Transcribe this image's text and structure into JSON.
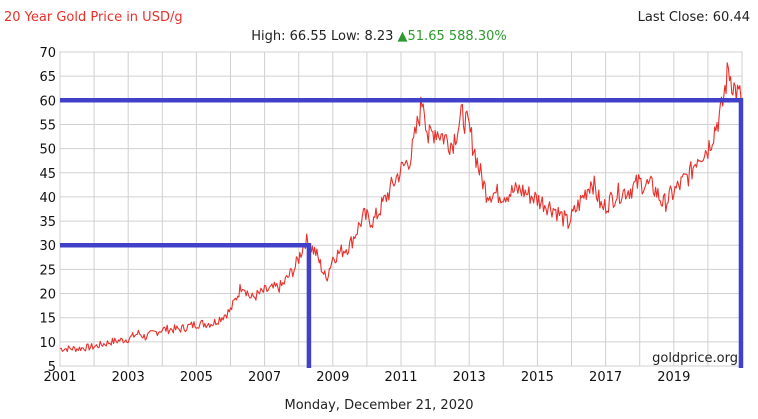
{
  "header": {
    "title": "20 Year Gold Price in USD/g",
    "last_close_label": "Last Close:",
    "last_close_value": "60.44",
    "high_label": "High:",
    "high_value": "66.55",
    "low_label": "Low:",
    "low_value": "8.23",
    "change_arrow": "▲",
    "change_value": "51.65",
    "change_percent": "588.30%"
  },
  "watermark": "goldprice.org",
  "date_text": "Monday, December 21, 2020",
  "colors": {
    "series": "#e8302a",
    "overlay": "#4040c8",
    "grid": "#d0d0d0",
    "up": "#2e9a2e"
  },
  "chart_data": {
    "type": "line",
    "title": "20 Year Gold Price in USD/g",
    "xlabel": "",
    "ylabel": "",
    "xlim": [
      2001.0,
      2021.0
    ],
    "ylim": [
      5,
      70
    ],
    "grid": true,
    "x_ticks": [
      "2001",
      "2003",
      "2005",
      "2007",
      "2009",
      "2011",
      "2013",
      "2015",
      "2017",
      "2019"
    ],
    "y_ticks": [
      5,
      10,
      15,
      20,
      25,
      30,
      35,
      40,
      45,
      50,
      55,
      60,
      65,
      70
    ],
    "series": [
      {
        "values": [
          [
            2001.0,
            8.6
          ],
          [
            2001.5,
            8.6
          ],
          [
            2002.0,
            9.0
          ],
          [
            2002.5,
            10.0
          ],
          [
            2003.0,
            10.6
          ],
          [
            2003.3,
            11.8
          ],
          [
            2003.5,
            11.0
          ],
          [
            2004.0,
            12.6
          ],
          [
            2004.5,
            12.6
          ],
          [
            2005.0,
            13.7
          ],
          [
            2005.5,
            13.9
          ],
          [
            2006.0,
            16.5
          ],
          [
            2006.35,
            22.0
          ],
          [
            2006.6,
            19.0
          ],
          [
            2007.0,
            20.5
          ],
          [
            2007.5,
            21.5
          ],
          [
            2007.9,
            25.5
          ],
          [
            2008.2,
            31.0
          ],
          [
            2008.5,
            28.5
          ],
          [
            2008.8,
            23.0
          ],
          [
            2009.0,
            27.5
          ],
          [
            2009.5,
            30.0
          ],
          [
            2009.9,
            36.0
          ],
          [
            2010.2,
            35.0
          ],
          [
            2010.5,
            39.0
          ],
          [
            2010.9,
            44.5
          ],
          [
            2011.3,
            48.5
          ],
          [
            2011.65,
            60.8
          ],
          [
            2011.8,
            52.0
          ],
          [
            2012.0,
            54.0
          ],
          [
            2012.5,
            51.0
          ],
          [
            2012.8,
            57.0
          ],
          [
            2013.0,
            54.0
          ],
          [
            2013.3,
            45.5
          ],
          [
            2013.5,
            41.0
          ],
          [
            2014.0,
            40.5
          ],
          [
            2014.5,
            41.5
          ],
          [
            2015.0,
            39.5
          ],
          [
            2015.5,
            37.5
          ],
          [
            2015.9,
            34.5
          ],
          [
            2016.3,
            39.5
          ],
          [
            2016.6,
            43.5
          ],
          [
            2016.9,
            37.5
          ],
          [
            2017.3,
            40.5
          ],
          [
            2017.7,
            41.5
          ],
          [
            2018.0,
            43.0
          ],
          [
            2018.4,
            42.0
          ],
          [
            2018.7,
            38.5
          ],
          [
            2019.0,
            41.0
          ],
          [
            2019.5,
            45.0
          ],
          [
            2019.7,
            48.5
          ],
          [
            2020.0,
            50.0
          ],
          [
            2020.2,
            54.0
          ],
          [
            2020.4,
            58.0
          ],
          [
            2020.6,
            66.5
          ],
          [
            2020.8,
            62.0
          ],
          [
            2020.97,
            60.4
          ]
        ]
      }
    ],
    "overlay_levels": [
      {
        "price": 60,
        "x_end": 2020.97
      },
      {
        "price": 30,
        "x_end": 2008.3
      }
    ]
  }
}
